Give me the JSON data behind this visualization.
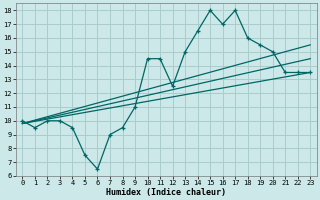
{
  "xlabel": "Humidex (Indice chaleur)",
  "background_color": "#cce8e8",
  "grid_color": "#aacccc",
  "line_color": "#006666",
  "xlim": [
    -0.5,
    23.5
  ],
  "ylim": [
    6,
    18.5
  ],
  "xticks": [
    0,
    1,
    2,
    3,
    4,
    5,
    6,
    7,
    8,
    9,
    10,
    11,
    12,
    13,
    14,
    15,
    16,
    17,
    18,
    19,
    20,
    21,
    22,
    23
  ],
  "yticks": [
    6,
    7,
    8,
    9,
    10,
    11,
    12,
    13,
    14,
    15,
    16,
    17,
    18
  ],
  "main_x": [
    0,
    1,
    2,
    3,
    4,
    5,
    6,
    7,
    8,
    9,
    10,
    11,
    12,
    13,
    14,
    15,
    16,
    17,
    18,
    19,
    20,
    21,
    22,
    23
  ],
  "main_y": [
    10,
    9.5,
    10,
    10,
    9.5,
    7.5,
    6.5,
    9,
    9.5,
    11,
    14.5,
    14.5,
    12.5,
    15,
    16.5,
    18,
    17,
    18,
    16,
    15.5,
    15,
    13.5,
    13.5,
    13.5
  ],
  "line1_x": [
    0,
    23
  ],
  "line1_y": [
    9.8,
    15.5
  ],
  "line2_x": [
    0,
    23
  ],
  "line2_y": [
    9.8,
    14.5
  ],
  "line3_x": [
    0,
    23
  ],
  "line3_y": [
    9.8,
    13.5
  ]
}
